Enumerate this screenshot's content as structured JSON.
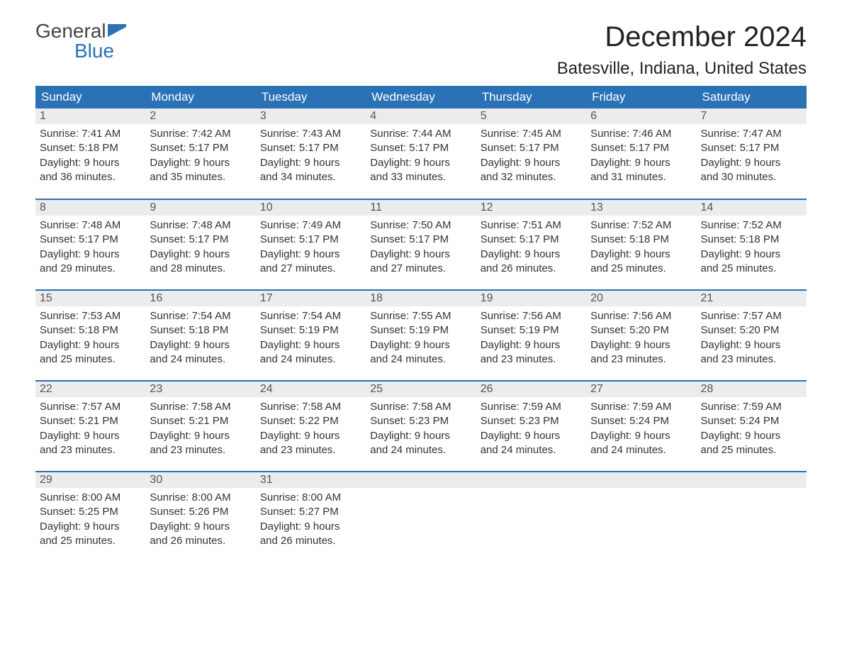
{
  "brand": {
    "line1": "General",
    "line2": "Blue"
  },
  "title": "December 2024",
  "location": "Batesville, Indiana, United States",
  "colors": {
    "header_bg": "#2a72b5",
    "header_fg": "#ffffff",
    "daynum_bg": "#ececec",
    "rule": "#2a72b5",
    "text": "#333333"
  },
  "columns": [
    "Sunday",
    "Monday",
    "Tuesday",
    "Wednesday",
    "Thursday",
    "Friday",
    "Saturday"
  ],
  "weeks": [
    [
      {
        "n": "1",
        "sr": "Sunrise: 7:41 AM",
        "ss": "Sunset: 5:18 PM",
        "d1": "Daylight: 9 hours",
        "d2": "and 36 minutes."
      },
      {
        "n": "2",
        "sr": "Sunrise: 7:42 AM",
        "ss": "Sunset: 5:17 PM",
        "d1": "Daylight: 9 hours",
        "d2": "and 35 minutes."
      },
      {
        "n": "3",
        "sr": "Sunrise: 7:43 AM",
        "ss": "Sunset: 5:17 PM",
        "d1": "Daylight: 9 hours",
        "d2": "and 34 minutes."
      },
      {
        "n": "4",
        "sr": "Sunrise: 7:44 AM",
        "ss": "Sunset: 5:17 PM",
        "d1": "Daylight: 9 hours",
        "d2": "and 33 minutes."
      },
      {
        "n": "5",
        "sr": "Sunrise: 7:45 AM",
        "ss": "Sunset: 5:17 PM",
        "d1": "Daylight: 9 hours",
        "d2": "and 32 minutes."
      },
      {
        "n": "6",
        "sr": "Sunrise: 7:46 AM",
        "ss": "Sunset: 5:17 PM",
        "d1": "Daylight: 9 hours",
        "d2": "and 31 minutes."
      },
      {
        "n": "7",
        "sr": "Sunrise: 7:47 AM",
        "ss": "Sunset: 5:17 PM",
        "d1": "Daylight: 9 hours",
        "d2": "and 30 minutes."
      }
    ],
    [
      {
        "n": "8",
        "sr": "Sunrise: 7:48 AM",
        "ss": "Sunset: 5:17 PM",
        "d1": "Daylight: 9 hours",
        "d2": "and 29 minutes."
      },
      {
        "n": "9",
        "sr": "Sunrise: 7:48 AM",
        "ss": "Sunset: 5:17 PM",
        "d1": "Daylight: 9 hours",
        "d2": "and 28 minutes."
      },
      {
        "n": "10",
        "sr": "Sunrise: 7:49 AM",
        "ss": "Sunset: 5:17 PM",
        "d1": "Daylight: 9 hours",
        "d2": "and 27 minutes."
      },
      {
        "n": "11",
        "sr": "Sunrise: 7:50 AM",
        "ss": "Sunset: 5:17 PM",
        "d1": "Daylight: 9 hours",
        "d2": "and 27 minutes."
      },
      {
        "n": "12",
        "sr": "Sunrise: 7:51 AM",
        "ss": "Sunset: 5:17 PM",
        "d1": "Daylight: 9 hours",
        "d2": "and 26 minutes."
      },
      {
        "n": "13",
        "sr": "Sunrise: 7:52 AM",
        "ss": "Sunset: 5:18 PM",
        "d1": "Daylight: 9 hours",
        "d2": "and 25 minutes."
      },
      {
        "n": "14",
        "sr": "Sunrise: 7:52 AM",
        "ss": "Sunset: 5:18 PM",
        "d1": "Daylight: 9 hours",
        "d2": "and 25 minutes."
      }
    ],
    [
      {
        "n": "15",
        "sr": "Sunrise: 7:53 AM",
        "ss": "Sunset: 5:18 PM",
        "d1": "Daylight: 9 hours",
        "d2": "and 25 minutes."
      },
      {
        "n": "16",
        "sr": "Sunrise: 7:54 AM",
        "ss": "Sunset: 5:18 PM",
        "d1": "Daylight: 9 hours",
        "d2": "and 24 minutes."
      },
      {
        "n": "17",
        "sr": "Sunrise: 7:54 AM",
        "ss": "Sunset: 5:19 PM",
        "d1": "Daylight: 9 hours",
        "d2": "and 24 minutes."
      },
      {
        "n": "18",
        "sr": "Sunrise: 7:55 AM",
        "ss": "Sunset: 5:19 PM",
        "d1": "Daylight: 9 hours",
        "d2": "and 24 minutes."
      },
      {
        "n": "19",
        "sr": "Sunrise: 7:56 AM",
        "ss": "Sunset: 5:19 PM",
        "d1": "Daylight: 9 hours",
        "d2": "and 23 minutes."
      },
      {
        "n": "20",
        "sr": "Sunrise: 7:56 AM",
        "ss": "Sunset: 5:20 PM",
        "d1": "Daylight: 9 hours",
        "d2": "and 23 minutes."
      },
      {
        "n": "21",
        "sr": "Sunrise: 7:57 AM",
        "ss": "Sunset: 5:20 PM",
        "d1": "Daylight: 9 hours",
        "d2": "and 23 minutes."
      }
    ],
    [
      {
        "n": "22",
        "sr": "Sunrise: 7:57 AM",
        "ss": "Sunset: 5:21 PM",
        "d1": "Daylight: 9 hours",
        "d2": "and 23 minutes."
      },
      {
        "n": "23",
        "sr": "Sunrise: 7:58 AM",
        "ss": "Sunset: 5:21 PM",
        "d1": "Daylight: 9 hours",
        "d2": "and 23 minutes."
      },
      {
        "n": "24",
        "sr": "Sunrise: 7:58 AM",
        "ss": "Sunset: 5:22 PM",
        "d1": "Daylight: 9 hours",
        "d2": "and 23 minutes."
      },
      {
        "n": "25",
        "sr": "Sunrise: 7:58 AM",
        "ss": "Sunset: 5:23 PM",
        "d1": "Daylight: 9 hours",
        "d2": "and 24 minutes."
      },
      {
        "n": "26",
        "sr": "Sunrise: 7:59 AM",
        "ss": "Sunset: 5:23 PM",
        "d1": "Daylight: 9 hours",
        "d2": "and 24 minutes."
      },
      {
        "n": "27",
        "sr": "Sunrise: 7:59 AM",
        "ss": "Sunset: 5:24 PM",
        "d1": "Daylight: 9 hours",
        "d2": "and 24 minutes."
      },
      {
        "n": "28",
        "sr": "Sunrise: 7:59 AM",
        "ss": "Sunset: 5:24 PM",
        "d1": "Daylight: 9 hours",
        "d2": "and 25 minutes."
      }
    ],
    [
      {
        "n": "29",
        "sr": "Sunrise: 8:00 AM",
        "ss": "Sunset: 5:25 PM",
        "d1": "Daylight: 9 hours",
        "d2": "and 25 minutes."
      },
      {
        "n": "30",
        "sr": "Sunrise: 8:00 AM",
        "ss": "Sunset: 5:26 PM",
        "d1": "Daylight: 9 hours",
        "d2": "and 26 minutes."
      },
      {
        "n": "31",
        "sr": "Sunrise: 8:00 AM",
        "ss": "Sunset: 5:27 PM",
        "d1": "Daylight: 9 hours",
        "d2": "and 26 minutes."
      },
      null,
      null,
      null,
      null
    ]
  ]
}
